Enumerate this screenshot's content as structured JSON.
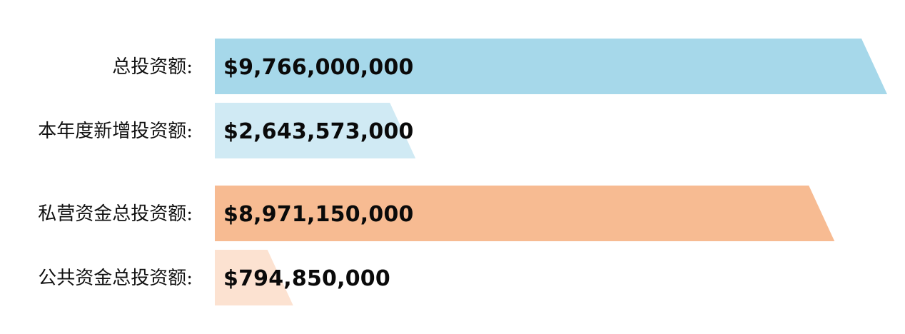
{
  "chart_data": {
    "type": "bar",
    "orientation": "horizontal",
    "categories": [
      "总投资额:",
      "本年度新增投资额:",
      "私营资金总投资额:",
      "公共资金总投资额:"
    ],
    "values": [
      9766000000,
      2643573000,
      8971150000,
      794850000
    ],
    "value_labels": [
      "$9,766,000,000",
      "$2,643,573,000",
      "$8,971,150,000",
      "$794,850,000"
    ],
    "colors": [
      "#a6d8ea",
      "#d0eaf4",
      "#f7bb92",
      "#fce2d1"
    ],
    "title": "",
    "xlabel": "",
    "ylabel": "",
    "grid": false,
    "legend": "none"
  }
}
